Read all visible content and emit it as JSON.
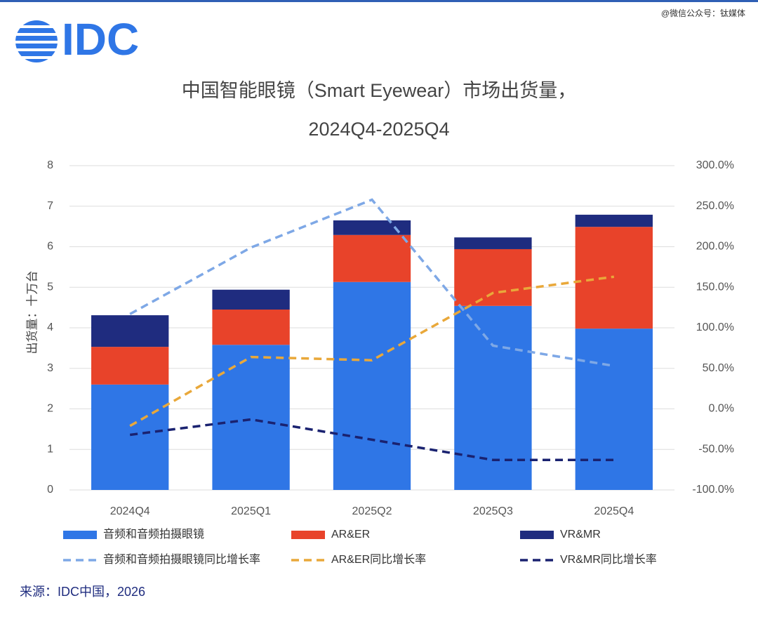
{
  "logo": "IDC",
  "watermark": "@微信公众号：钛媒体",
  "source": "来源：IDC中国，2026",
  "chart_data": {
    "type": "bar",
    "stacked": true,
    "title": "中国智能眼镜（Smart Eyewear）市场出货量，",
    "subtitle": "2024Q4-2025Q4",
    "y_label": "出货量：十万台",
    "categories": [
      "2024Q4",
      "2025Q1",
      "2025Q2",
      "2025Q3",
      "2025Q4"
    ],
    "ylim": [
      0,
      8
    ],
    "yticks": [
      0,
      1,
      2,
      3,
      4,
      5,
      6,
      7,
      8
    ],
    "y2lim": [
      -100,
      300
    ],
    "y2ticks": [
      {
        "value": -100,
        "label": "-100.0%"
      },
      {
        "value": -50,
        "label": "-50.0%"
      },
      {
        "value": 0,
        "label": "0.0%"
      },
      {
        "value": 50,
        "label": "50.0%"
      },
      {
        "value": 100,
        "label": "100.0%"
      },
      {
        "value": 150,
        "label": "150.0%"
      },
      {
        "value": 200,
        "label": "200.0%"
      },
      {
        "value": 250,
        "label": "250.0%"
      },
      {
        "value": 300,
        "label": "300.0%"
      }
    ],
    "grid": true,
    "series": [
      {
        "name": "音频和音频拍摄眼镜",
        "type": "bar",
        "color": "#2f76e6",
        "values": [
          2.6,
          3.58,
          5.13,
          4.54,
          3.98
        ]
      },
      {
        "name": "AR&ER",
        "type": "bar",
        "color": "#e8432a",
        "values": [
          0.93,
          0.87,
          1.16,
          1.4,
          2.51
        ]
      },
      {
        "name": "VR&MR",
        "type": "bar",
        "color": "#1f2c7f",
        "values": [
          0.78,
          0.49,
          0.36,
          0.29,
          0.3
        ]
      },
      {
        "name": "音频和音频拍摄眼镜同比增长率",
        "type": "line",
        "axis": "y2",
        "dashed": true,
        "color": "#7ea8e6",
        "values": [
          117,
          199,
          258,
          78,
          53
        ]
      },
      {
        "name": "AR&ER同比增长率",
        "type": "line",
        "axis": "y2",
        "dashed": true,
        "color": "#e9a83a",
        "values": [
          -21,
          64,
          60,
          143,
          163
        ]
      },
      {
        "name": "VR&MR同比增长率",
        "type": "line",
        "axis": "y2",
        "dashed": true,
        "color": "#1a2270",
        "values": [
          -32,
          -13,
          -38,
          -63,
          -63
        ]
      }
    ]
  }
}
